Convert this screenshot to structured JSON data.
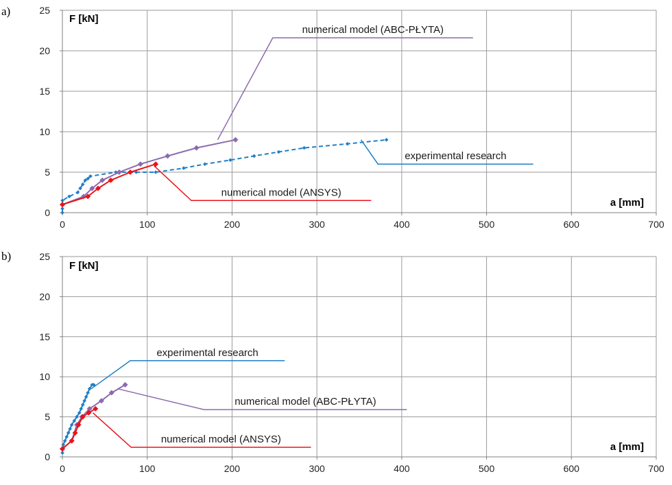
{
  "colors": {
    "experimental": "#1f7fc6",
    "abc": "#8b6bad",
    "ansys": "#e8141a",
    "grid": "#9a9a9a",
    "axis": "#808080"
  },
  "chart_data": [
    {
      "type": "line",
      "panel_label": "a)",
      "xlabel": "a [mm]",
      "ylabel": "F [kN]",
      "xlim": [
        0,
        700
      ],
      "ylim": [
        0,
        25
      ],
      "x_ticks": [
        0,
        100,
        200,
        300,
        400,
        500,
        600,
        700
      ],
      "y_ticks": [
        0,
        5,
        10,
        15,
        20,
        25
      ],
      "x_tick_labels": [
        "0",
        "100",
        "200",
        "300",
        "400",
        "500",
        "600",
        "700"
      ],
      "y_tick_labels": [
        "0",
        "5",
        "10",
        "15",
        "20",
        "25"
      ],
      "grid": true,
      "series": [
        {
          "key": "experimental",
          "name": "experimental research",
          "style": "dashed-markers",
          "color": "#1f7fc6",
          "x": [
            0,
            0,
            0,
            8,
            18,
            21,
            24,
            27,
            30,
            33,
            63,
            87,
            110,
            143,
            168,
            198,
            226,
            255,
            285,
            336,
            382
          ],
          "y": [
            0,
            0.5,
            1.5,
            2,
            2.5,
            3,
            3.5,
            4,
            4.2,
            4.5,
            5,
            5,
            5,
            5.5,
            6,
            6.5,
            7,
            7.5,
            8,
            8.5,
            9
          ]
        },
        {
          "key": "abc",
          "name": "numerical model (ABC-PŁYTA)",
          "style": "solid-markers",
          "color": "#8b6bad",
          "x": [
            0,
            25,
            35,
            47,
            67,
            92,
            124,
            158,
            204
          ],
          "y": [
            1,
            2,
            3,
            4,
            5,
            6,
            7,
            8,
            9
          ]
        },
        {
          "key": "ansys",
          "name": "numerical model (ANSYS)",
          "style": "solid-markers",
          "color": "#e8141a",
          "x": [
            0,
            30,
            42,
            57,
            80,
            110
          ],
          "y": [
            1,
            2,
            3,
            4,
            5,
            6
          ]
        }
      ],
      "callouts": [
        {
          "series": "abc",
          "text": "numerical model (ABC-PŁYTA)",
          "anchor": [
            183,
            9
          ],
          "elbow": [
            248,
            21.6
          ],
          "end": [
            484,
            21.6
          ]
        },
        {
          "series": "experimental",
          "text": "experimental research",
          "anchor": [
            352,
            9
          ],
          "elbow": [
            372,
            6
          ],
          "end": [
            555,
            6
          ]
        },
        {
          "series": "ansys",
          "text": "numerical model (ANSYS)",
          "anchor": [
            108,
            5.8
          ],
          "elbow": [
            152,
            1.5
          ],
          "end": [
            364,
            1.5
          ]
        }
      ]
    },
    {
      "type": "line",
      "panel_label": "b)",
      "xlabel": "a [mm]",
      "ylabel": "F [kN]",
      "xlim": [
        0,
        700
      ],
      "ylim": [
        0,
        25
      ],
      "x_ticks": [
        0,
        100,
        200,
        300,
        400,
        500,
        600,
        700
      ],
      "y_ticks": [
        0,
        5,
        10,
        15,
        20,
        25
      ],
      "x_tick_labels": [
        "0",
        "100",
        "200",
        "300",
        "400",
        "500",
        "600",
        "700"
      ],
      "y_tick_labels": [
        "0",
        "5",
        "10",
        "15",
        "20",
        "25"
      ],
      "grid": true,
      "series": [
        {
          "key": "experimental",
          "name": "experimental research",
          "style": "solid-markers",
          "color": "#1f7fc6",
          "x": [
            0,
            1,
            3,
            5,
            7,
            9,
            11,
            14,
            17,
            20,
            22,
            24,
            26,
            28,
            30,
            32,
            35,
            37
          ],
          "y": [
            0.5,
            1.5,
            2,
            2.5,
            3,
            3.5,
            4,
            4.5,
            5,
            5.5,
            6,
            6.5,
            7,
            7.5,
            8,
            8.5,
            9,
            9
          ]
        },
        {
          "key": "abc",
          "name": "numerical model (ABC-PŁYTA)",
          "style": "solid-markers",
          "color": "#8b6bad",
          "x": [
            0,
            11,
            17,
            23,
            32,
            46,
            58,
            74
          ],
          "y": [
            1,
            2,
            4,
            5,
            6,
            7,
            8,
            9
          ]
        },
        {
          "key": "ansys",
          "name": "numerical model (ANSYS)",
          "style": "solid-markers",
          "color": "#e8141a",
          "x": [
            0,
            11,
            15,
            19,
            24,
            31,
            39
          ],
          "y": [
            1,
            2,
            3,
            4,
            5,
            5.5,
            6
          ]
        }
      ],
      "callouts": [
        {
          "series": "experimental",
          "text": "experimental research",
          "anchor": [
            34,
            8.5
          ],
          "elbow": [
            80,
            12
          ],
          "end": [
            262,
            12
          ]
        },
        {
          "series": "abc",
          "text": "numerical model (ABC-PŁYTA)",
          "anchor": [
            65,
            8.5
          ],
          "elbow": [
            167,
            5.9
          ],
          "end": [
            406,
            5.9
          ]
        },
        {
          "series": "ansys",
          "text": "numerical model (ANSYS)",
          "anchor": [
            36,
            5.5
          ],
          "elbow": [
            81,
            1.2
          ],
          "end": [
            293,
            1.2
          ]
        }
      ]
    }
  ]
}
